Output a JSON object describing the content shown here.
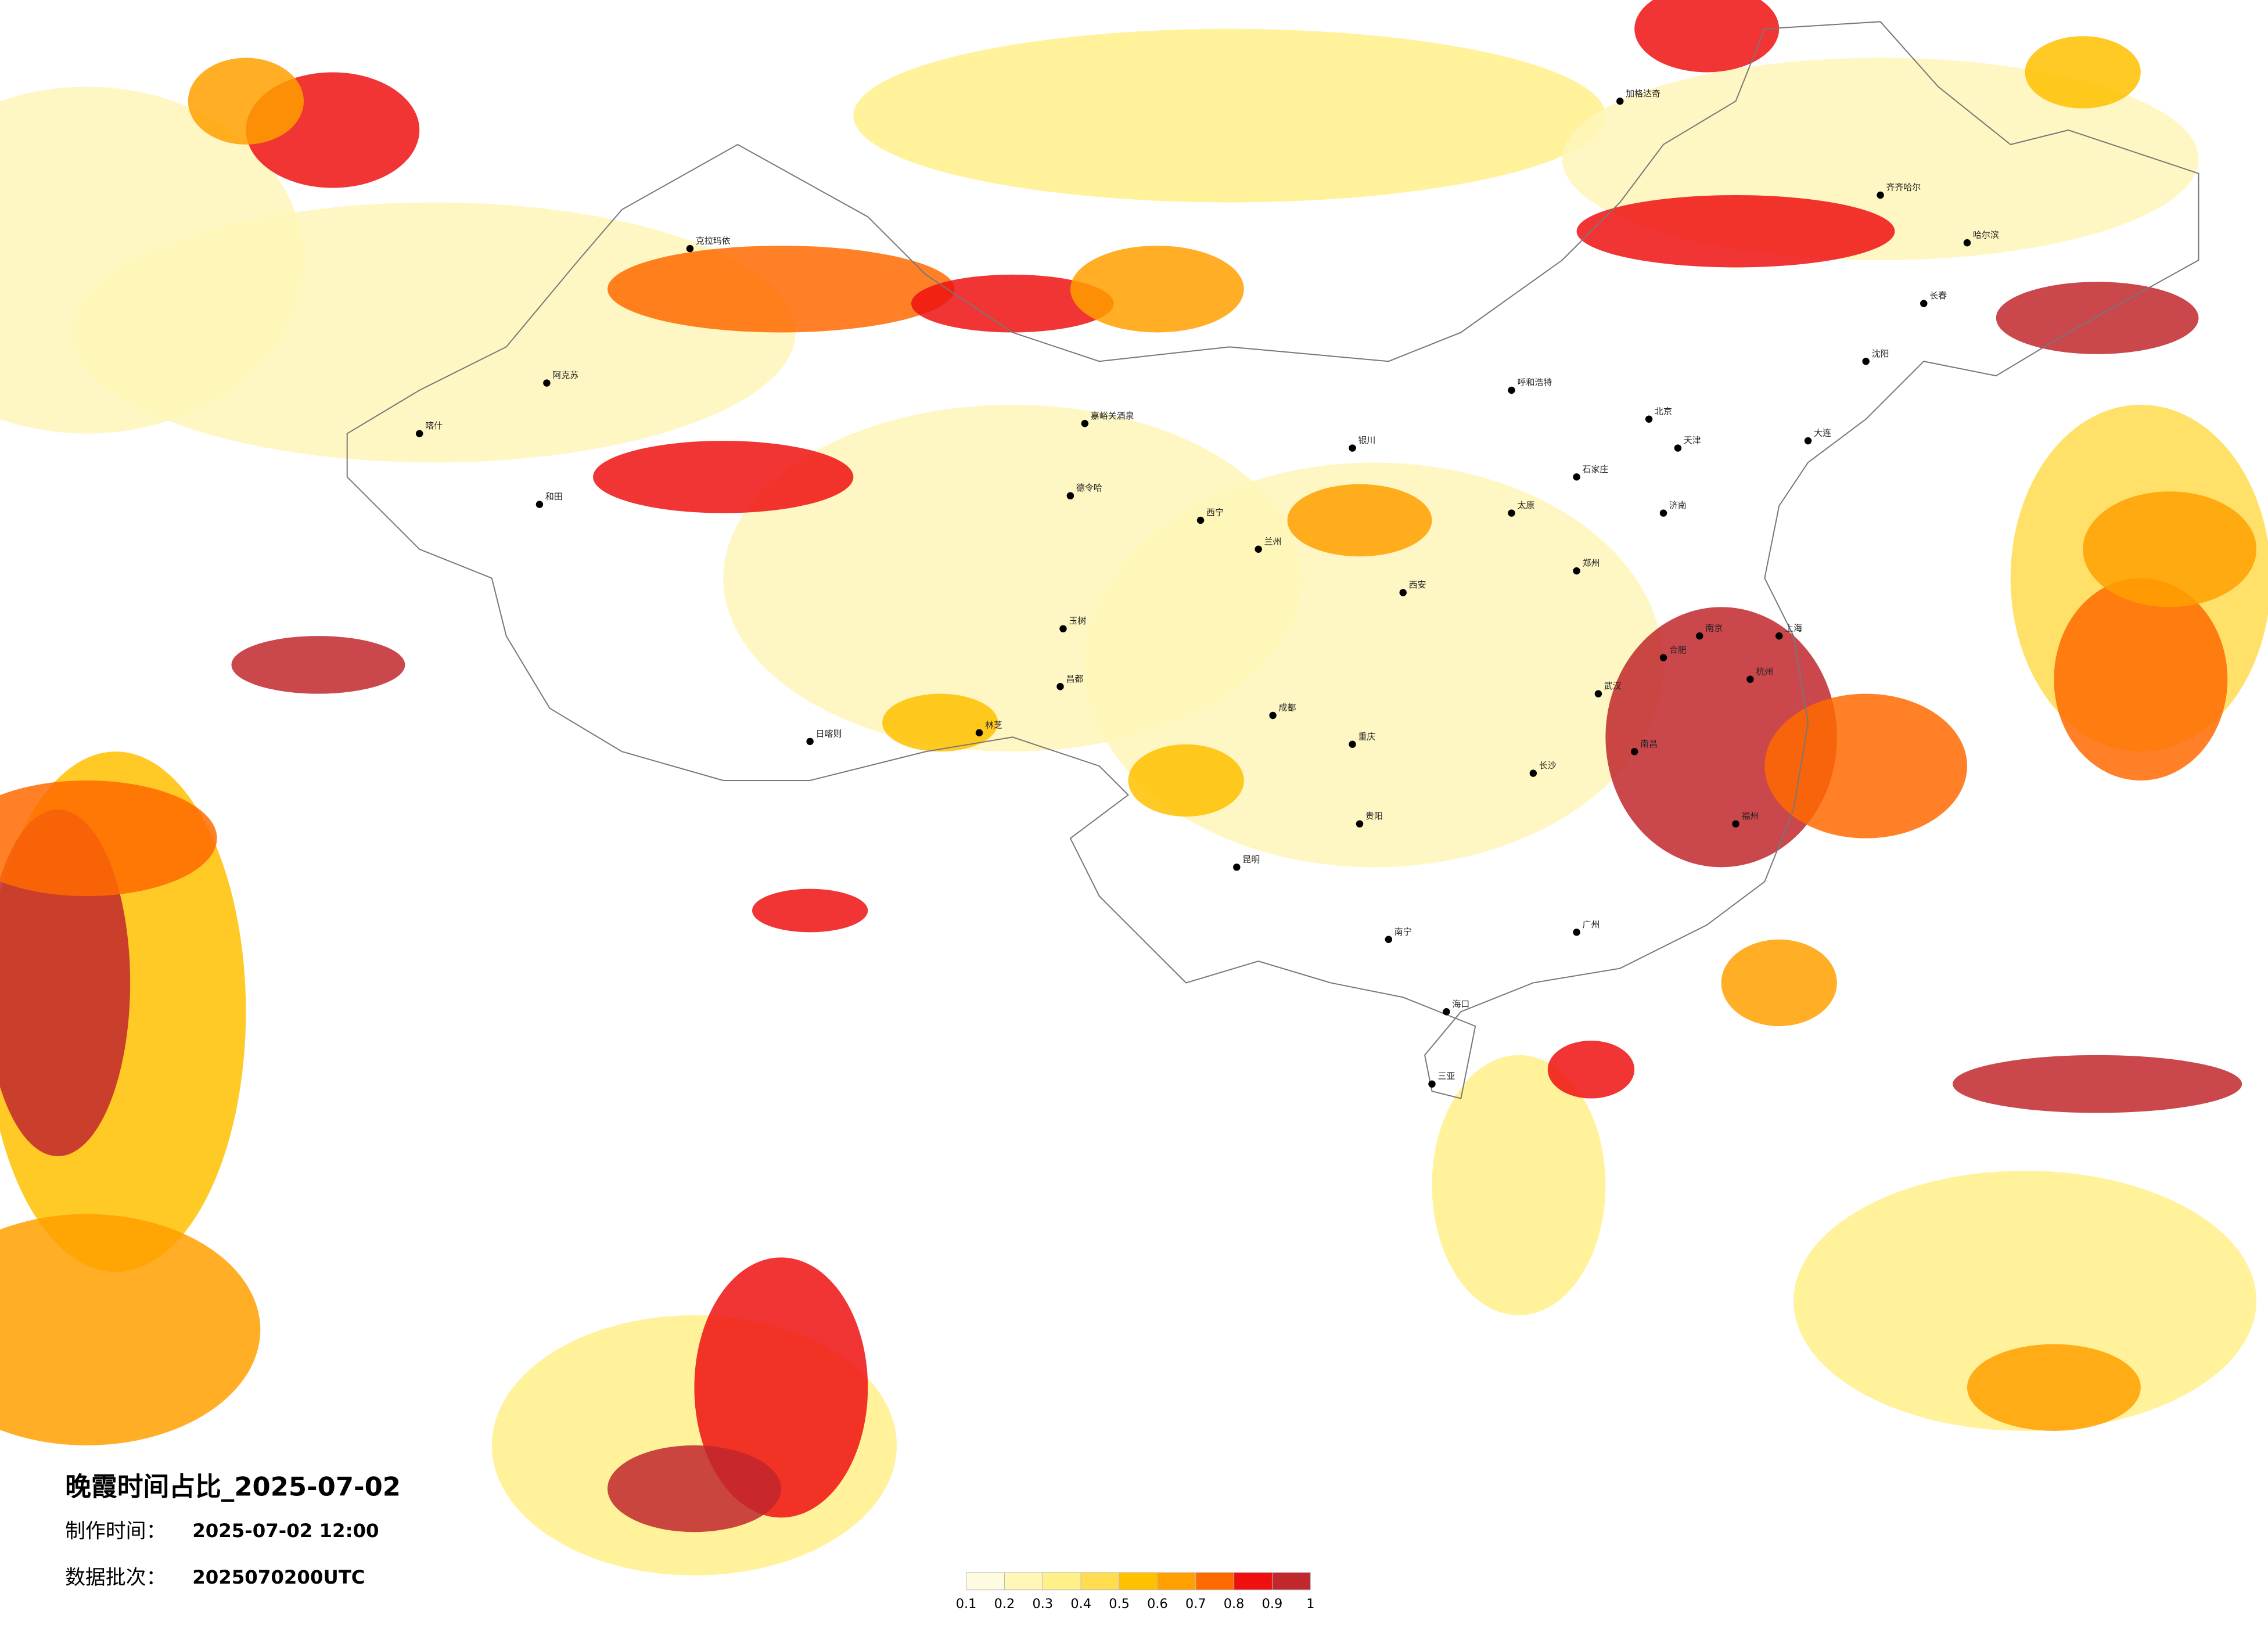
{
  "title": "晚霞时间占比_2025-07-02",
  "info": {
    "made_label": "制作时间：",
    "made_value": "2025-07-02 12:00",
    "batch_label": "数据批次：",
    "batch_value": "2025070200UTC"
  },
  "colorbar": {
    "colors": [
      "#fffbe0",
      "#fff6b8",
      "#fff08a",
      "#ffdc50",
      "#ffc000",
      "#ffa000",
      "#ff6a00",
      "#ee1010",
      "#c1272d"
    ],
    "ticks": [
      0.1,
      0.2,
      0.3,
      0.4,
      0.5,
      0.6,
      0.7,
      0.8,
      0.9,
      1
    ]
  },
  "cities": [
    "克拉玛依",
    "阿克苏",
    "和田",
    "喀什",
    "林芝",
    "日喀则",
    "昌都",
    "玉树",
    "嘉峪关酒泉",
    "德令哈",
    "西宁",
    "兰州",
    "银川",
    "呼和浩特",
    "北京",
    "天津",
    "石家庄",
    "太原",
    "济南",
    "郑州",
    "西安",
    "成都",
    "重庆",
    "贵阳",
    "昆明",
    "南宁",
    "广州",
    "长沙",
    "武汉",
    "南昌",
    "杭州",
    "上海",
    "南京",
    "福州",
    "合肥",
    "哈尔滨",
    "长春",
    "沈阳",
    "大连",
    "海口",
    "三亚",
    "齐齐哈尔",
    "加格达奇"
  ]
}
